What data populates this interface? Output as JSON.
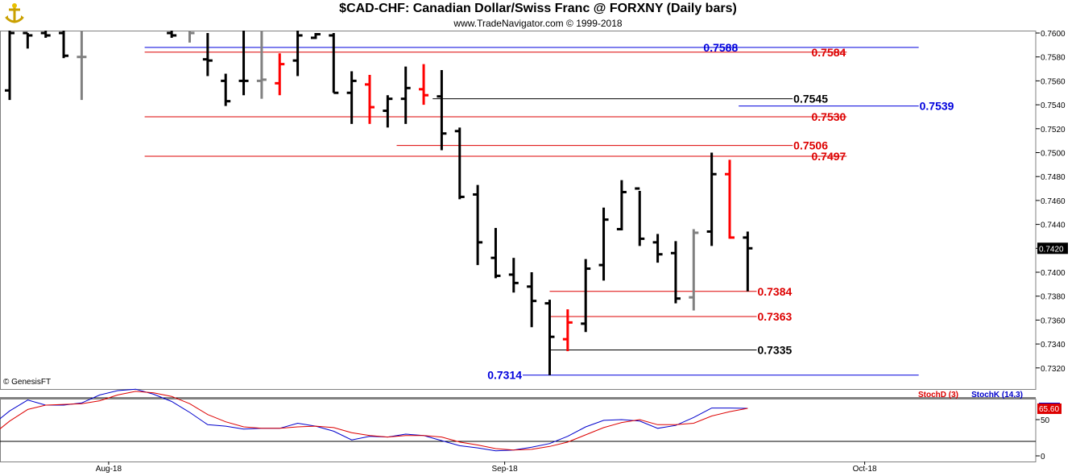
{
  "header": {
    "title": "$CAD-CHF:  Canadian Dollar/Swiss Franc @ FORXNY  (Daily bars)",
    "subtitle": "www.TradeNavigator.com © 1999-2018",
    "copyright": "© GenesisFT"
  },
  "colors": {
    "up_bar": "#000000",
    "down_bar": "#ff0000",
    "neutral_bar": "#808080",
    "red_level": "#dd0000",
    "blue_level": "#0000dd",
    "black_level": "#000000",
    "stoch_d": "#dd0000",
    "stoch_k": "#0000cc",
    "last_price_bg": "#000000",
    "stoch_last_bg": "#dd0000"
  },
  "chart_data": [
    {
      "type": "ohlc",
      "title": "$CAD-CHF:  Canadian Dollar/Swiss Franc @ FORXNY  (Daily bars)",
      "ylim": [
        0.731,
        0.762
      ],
      "y_ticks": [
        "0.7600",
        "0.7580",
        "0.7560",
        "0.7540",
        "0.7520",
        "0.7500",
        "0.7480",
        "0.7460",
        "0.7440",
        "0.7420",
        "0.7400",
        "0.7380",
        "0.7360",
        "0.7340",
        "0.7320"
      ],
      "x_labels": [
        {
          "label": "Aug-18",
          "bar": 5.5
        },
        {
          "label": "Sep-18",
          "bar": 27.5
        },
        {
          "label": "Oct-18",
          "bar": 47.5
        }
      ],
      "last_price": "0.7420",
      "bars": [
        {
          "i": 0,
          "o": 0.7552,
          "h": 0.762,
          "l": 0.7544,
          "c": 0.76,
          "color": "up"
        },
        {
          "i": 1,
          "o": 0.76,
          "h": 0.76,
          "l": 0.7587,
          "c": 0.7598,
          "color": "up"
        },
        {
          "i": 2,
          "o": 0.76,
          "h": 0.7605,
          "l": 0.7596,
          "c": 0.7598,
          "color": "up"
        },
        {
          "i": 3,
          "o": 0.76,
          "h": 0.7605,
          "l": 0.7579,
          "c": 0.7581,
          "color": "up"
        },
        {
          "i": 4,
          "o": 0.758,
          "h": 0.7605,
          "l": 0.7544,
          "c": 0.758,
          "color": "neutral"
        },
        {
          "i": 9,
          "o": 0.76,
          "h": 0.762,
          "l": 0.7596,
          "c": 0.7598,
          "color": "up"
        },
        {
          "i": 10,
          "o": 0.7604,
          "h": 0.762,
          "l": 0.7592,
          "c": 0.76,
          "color": "neutral"
        },
        {
          "i": 11,
          "o": 0.7578,
          "h": 0.76,
          "l": 0.7564,
          "c": 0.7577,
          "color": "up"
        },
        {
          "i": 12,
          "o": 0.756,
          "h": 0.7566,
          "l": 0.7539,
          "c": 0.7543,
          "color": "up"
        },
        {
          "i": 13,
          "o": 0.756,
          "h": 0.7605,
          "l": 0.7548,
          "c": 0.756,
          "color": "up"
        },
        {
          "i": 14,
          "o": 0.756,
          "h": 0.7605,
          "l": 0.7545,
          "c": 0.7561,
          "color": "neutral"
        },
        {
          "i": 15,
          "o": 0.7558,
          "h": 0.7583,
          "l": 0.7548,
          "c": 0.7574,
          "color": "down"
        },
        {
          "i": 16,
          "o": 0.7577,
          "h": 0.762,
          "l": 0.7564,
          "c": 0.7598,
          "color": "up"
        },
        {
          "i": 17,
          "o": 0.7596,
          "h": 0.76,
          "l": 0.7595,
          "c": 0.7599,
          "color": "up"
        },
        {
          "i": 18,
          "o": 0.7598,
          "h": 0.76,
          "l": 0.755,
          "c": 0.755,
          "color": "up"
        },
        {
          "i": 19,
          "o": 0.755,
          "h": 0.7568,
          "l": 0.7524,
          "c": 0.756,
          "color": "up"
        },
        {
          "i": 20,
          "o": 0.7557,
          "h": 0.7565,
          "l": 0.7524,
          "c": 0.7538,
          "color": "down"
        },
        {
          "i": 21,
          "o": 0.7535,
          "h": 0.7548,
          "l": 0.7521,
          "c": 0.7545,
          "color": "up"
        },
        {
          "i": 22,
          "o": 0.7545,
          "h": 0.7572,
          "l": 0.7524,
          "c": 0.7554,
          "color": "up"
        },
        {
          "i": 23,
          "o": 0.7553,
          "h": 0.7574,
          "l": 0.754,
          "c": 0.7548,
          "color": "down"
        },
        {
          "i": 24,
          "o": 0.7547,
          "h": 0.7569,
          "l": 0.7502,
          "c": 0.7516,
          "color": "up"
        },
        {
          "i": 25,
          "o": 0.7518,
          "h": 0.7521,
          "l": 0.7461,
          "c": 0.7463,
          "color": "up"
        },
        {
          "i": 26,
          "o": 0.7465,
          "h": 0.7473,
          "l": 0.7406,
          "c": 0.7425,
          "color": "up"
        },
        {
          "i": 27,
          "o": 0.7412,
          "h": 0.7437,
          "l": 0.7395,
          "c": 0.7397,
          "color": "up"
        },
        {
          "i": 28,
          "o": 0.7398,
          "h": 0.7412,
          "l": 0.7383,
          "c": 0.7391,
          "color": "up"
        },
        {
          "i": 29,
          "o": 0.7388,
          "h": 0.74,
          "l": 0.7354,
          "c": 0.7376,
          "color": "up"
        },
        {
          "i": 30,
          "o": 0.7374,
          "h": 0.7377,
          "l": 0.7314,
          "c": 0.7346,
          "color": "up"
        },
        {
          "i": 31,
          "o": 0.7344,
          "h": 0.7369,
          "l": 0.7334,
          "c": 0.7358,
          "color": "down"
        },
        {
          "i": 32,
          "o": 0.7357,
          "h": 0.7411,
          "l": 0.735,
          "c": 0.7403,
          "color": "up"
        },
        {
          "i": 33,
          "o": 0.7406,
          "h": 0.7454,
          "l": 0.7393,
          "c": 0.7444,
          "color": "up"
        },
        {
          "i": 34,
          "o": 0.7436,
          "h": 0.7477,
          "l": 0.7435,
          "c": 0.7467,
          "color": "up"
        },
        {
          "i": 35,
          "o": 0.747,
          "h": 0.7468,
          "l": 0.7422,
          "c": 0.7428,
          "color": "up"
        },
        {
          "i": 36,
          "o": 0.7425,
          "h": 0.7432,
          "l": 0.7408,
          "c": 0.7415,
          "color": "up"
        },
        {
          "i": 37,
          "o": 0.7416,
          "h": 0.7426,
          "l": 0.7374,
          "c": 0.7378,
          "color": "up"
        },
        {
          "i": 38,
          "o": 0.7379,
          "h": 0.7436,
          "l": 0.7368,
          "c": 0.7433,
          "color": "neutral"
        },
        {
          "i": 39,
          "o": 0.7434,
          "h": 0.75,
          "l": 0.7422,
          "c": 0.7482,
          "color": "up"
        },
        {
          "i": 40,
          "o": 0.7482,
          "h": 0.7494,
          "l": 0.7428,
          "c": 0.7429,
          "color": "down"
        },
        {
          "i": 41,
          "o": 0.7429,
          "h": 0.7434,
          "l": 0.7384,
          "c": 0.742,
          "color": "up"
        }
      ],
      "levels": [
        {
          "value": 0.7588,
          "label": "0.7588",
          "color": "blue",
          "from_bar": 7.5,
          "to_bar": 50.5,
          "label_bar": 39.5
        },
        {
          "value": 0.7584,
          "label": "0.7584",
          "color": "red",
          "from_bar": 7.5,
          "to_bar": 46.5,
          "label_bar": 45.5
        },
        {
          "value": 0.7545,
          "label": "0.7545",
          "color": "black",
          "from_bar": 23.5,
          "to_bar": 43.5,
          "label_bar": 44.5
        },
        {
          "value": 0.7539,
          "label": "0.7539",
          "color": "blue",
          "from_bar": 40.5,
          "to_bar": 50.5,
          "label_bar": 51.5
        },
        {
          "value": 0.753,
          "label": "0.7530",
          "color": "red",
          "from_bar": 7.5,
          "to_bar": 46.5,
          "label_bar": 45.5
        },
        {
          "value": 0.7506,
          "label": "0.7506",
          "color": "red",
          "from_bar": 21.5,
          "to_bar": 43.5,
          "label_bar": 44.5
        },
        {
          "value": 0.7497,
          "label": "0.7497",
          "color": "red",
          "from_bar": 7.5,
          "to_bar": 46.5,
          "label_bar": 45.5
        },
        {
          "value": 0.7384,
          "label": "0.7384",
          "color": "red",
          "from_bar": 30.0,
          "to_bar": 41.5,
          "label_bar": 42.5
        },
        {
          "value": 0.7363,
          "label": "0.7363",
          "color": "red",
          "from_bar": 30.0,
          "to_bar": 41.5,
          "label_bar": 42.5
        },
        {
          "value": 0.7335,
          "label": "0.7335",
          "color": "black",
          "from_bar": 30.0,
          "to_bar": 41.5,
          "label_bar": 42.5
        },
        {
          "value": 0.7314,
          "label": "0.7314",
          "color": "blue",
          "from_bar": 28.5,
          "to_bar": 50.5,
          "label_bar": 27.5
        }
      ]
    },
    {
      "type": "line",
      "title": "",
      "ylim": [
        0,
        100
      ],
      "y_ticks": [
        "50",
        "0"
      ],
      "legend": [
        {
          "name": "StochD (3)",
          "color": "red"
        },
        {
          "name": "StochK (14,3)",
          "color": "blue"
        }
      ],
      "last_value": "65.60",
      "x": [
        -1,
        0,
        1,
        2,
        3,
        4,
        5,
        6,
        7,
        8,
        9,
        10,
        11,
        12,
        13,
        14,
        15,
        16,
        17,
        18,
        19,
        20,
        21,
        22,
        23,
        24,
        25,
        26,
        27,
        28,
        29,
        30,
        31,
        32,
        33,
        34,
        35,
        36,
        37,
        38,
        39,
        40,
        41
      ],
      "series": [
        {
          "name": "StochK (14,3)",
          "color": "blue",
          "values": [
            42,
            62,
            77,
            70,
            70,
            73,
            84,
            90,
            92,
            85,
            75,
            60,
            43,
            41,
            37,
            38,
            38,
            45,
            41,
            34,
            22,
            27,
            26,
            30,
            28,
            21,
            14,
            11,
            7,
            8,
            12,
            17,
            27,
            40,
            49,
            50,
            48,
            38,
            42,
            53,
            66,
            66,
            65.6
          ]
        },
        {
          "name": "StochD (3)",
          "color": "red",
          "values": [
            28,
            48,
            64,
            70,
            71,
            72,
            76,
            84,
            89,
            87,
            82,
            72,
            57,
            47,
            40,
            38,
            38,
            40,
            41,
            39,
            32,
            28,
            26,
            28,
            28,
            26,
            19,
            15,
            10,
            8,
            9,
            13,
            19,
            29,
            39,
            46,
            50,
            43,
            43,
            45,
            55,
            61,
            65.6
          ]
        }
      ]
    }
  ]
}
